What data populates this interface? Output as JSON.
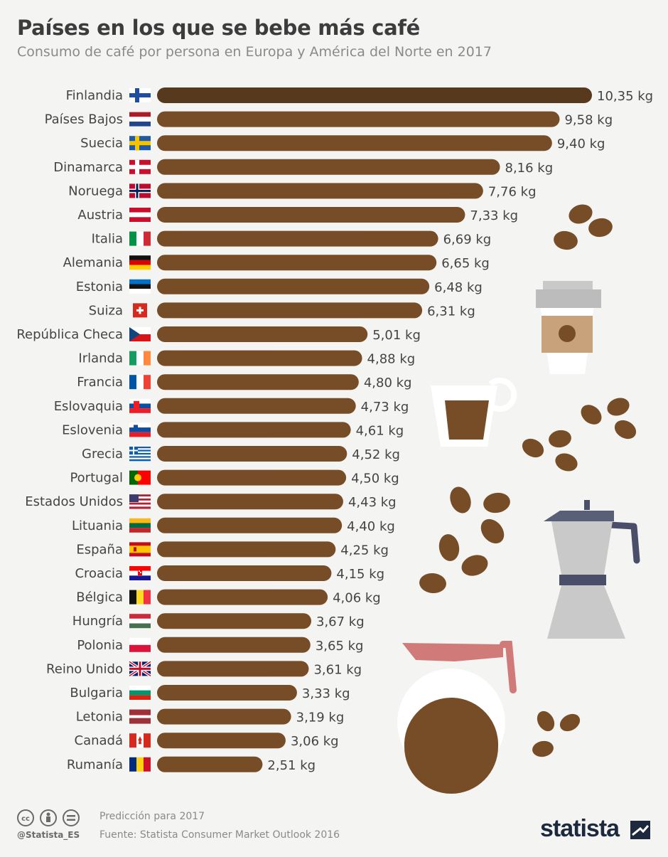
{
  "header": {
    "title": "Países en los que se bebe más café",
    "subtitle": "Consumo de café por persona en Europa y América del Norte en 2017"
  },
  "chart_data": {
    "type": "bar",
    "orientation": "horizontal",
    "title": "Países en los que se bebe más café",
    "subtitle": "Consumo de café por persona en Europa y América del Norte en 2017",
    "unit": "kg",
    "categories": [
      "Finlandia",
      "Países Bajos",
      "Suecia",
      "Dinamarca",
      "Noruega",
      "Austria",
      "Italia",
      "Alemania",
      "Estonia",
      "Suiza",
      "República Checa",
      "Irlanda",
      "Francia",
      "Eslovaquia",
      "Eslovenia",
      "Grecia",
      "Portugal",
      "Estados Unidos",
      "Lituania",
      "España",
      "Croacia",
      "Bélgica",
      "Hungría",
      "Polonia",
      "Reino Unido",
      "Bulgaria",
      "Letonia",
      "Canadá",
      "Rumanía"
    ],
    "values": [
      10.35,
      9.58,
      9.4,
      8.16,
      7.76,
      7.33,
      6.69,
      6.65,
      6.48,
      6.31,
      5.01,
      4.88,
      4.8,
      4.73,
      4.61,
      4.52,
      4.5,
      4.43,
      4.4,
      4.25,
      4.15,
      4.06,
      3.67,
      3.65,
      3.61,
      3.33,
      3.19,
      3.06,
      2.51
    ],
    "value_labels": [
      "10,35 kg",
      "9,58 kg",
      "9,40 kg",
      "8,16 kg",
      "7,76 kg",
      "7,33 kg",
      "6,69 kg",
      "6,65 kg",
      "6,48 kg",
      "6,31 kg",
      "5,01 kg",
      "4,88 kg",
      "4,80 kg",
      "4,73 kg",
      "4,61 kg",
      "4,52 kg",
      "4,50 kg",
      "4,43 kg",
      "4,40 kg",
      "4,25 kg",
      "4,15 kg",
      "4,06 kg",
      "3,67 kg",
      "3,65 kg",
      "3,61 kg",
      "3,33 kg",
      "3,19 kg",
      "3,06 kg",
      "2,51 kg"
    ],
    "flags": [
      "finland",
      "netherlands",
      "sweden",
      "denmark",
      "norway",
      "austria",
      "italy",
      "germany",
      "estonia",
      "switzerland",
      "czech-republic",
      "ireland",
      "france",
      "slovakia",
      "slovenia",
      "greece",
      "portugal",
      "united-states",
      "lithuania",
      "spain",
      "croatia",
      "belgium",
      "hungary",
      "poland",
      "united-kingdom",
      "bulgaria",
      "latvia",
      "canada",
      "romania"
    ],
    "xlim": [
      0,
      10.35
    ],
    "grid": false,
    "legend": "none",
    "colors": {
      "bar": "#774d27",
      "bar_top": "#573a1d"
    }
  },
  "footer": {
    "note": "Predicción para 2017",
    "source": "Fuente: Statista Consumer Market Outlook 2016",
    "handle": "@Statista_ES",
    "brand": "statista"
  },
  "decor_icons": [
    "coffee-beans-icon",
    "takeaway-cup-icon",
    "espresso-cup-icon",
    "moka-pot-icon",
    "coffee-carafe-icon"
  ]
}
